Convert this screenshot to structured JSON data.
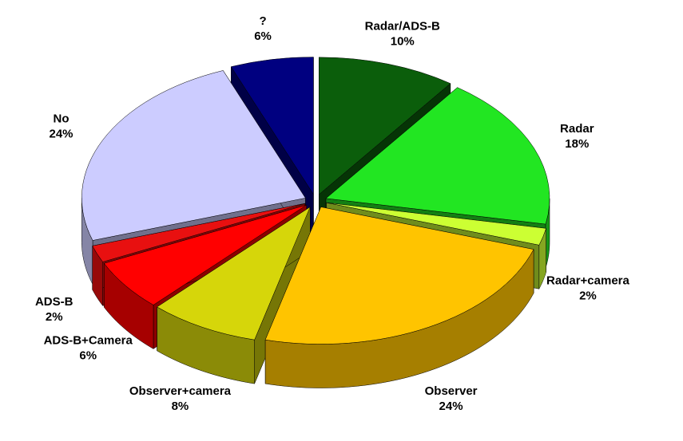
{
  "chart_data": {
    "type": "pie",
    "categories": [
      "Radar/ADS-B",
      "Radar",
      "Radar+camera",
      "Observer",
      "Observer+camera",
      "ADS-B+Camera",
      "ADS-B",
      "No",
      "?"
    ],
    "values": [
      10,
      18,
      2,
      24,
      8,
      6,
      2,
      24,
      6
    ],
    "value_labels": [
      "10%",
      "18%",
      "2%",
      "24%",
      "8%",
      "6%",
      "2%",
      "24%",
      "6%"
    ],
    "colors": [
      "#0b5e0b",
      "#22e622",
      "#ccff33",
      "#ffc400",
      "#d6d60a",
      "#ff0000",
      "#e81010",
      "#ccccff",
      "#000080"
    ]
  }
}
